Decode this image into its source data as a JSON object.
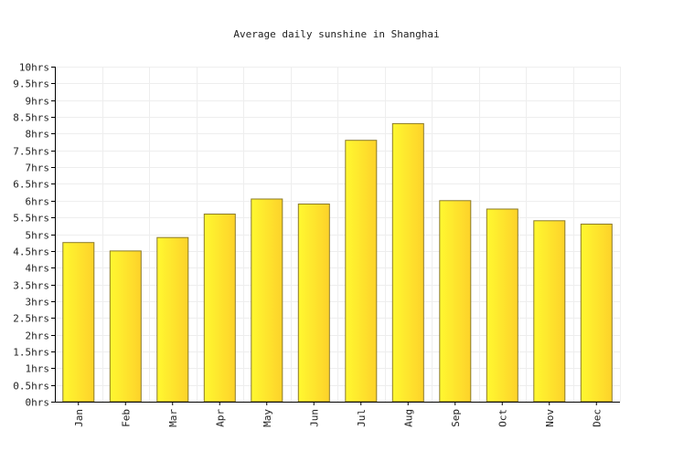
{
  "chart_data": {
    "type": "bar",
    "title": "Average daily sunshine in Shanghai",
    "xlabel": "",
    "ylabel": "",
    "categories": [
      "Jan",
      "Feb",
      "Mar",
      "Apr",
      "May",
      "Jun",
      "Jul",
      "Aug",
      "Sep",
      "Oct",
      "Nov",
      "Dec"
    ],
    "series": [
      {
        "values": [
          4.75,
          4.5,
          4.9,
          5.6,
          6.05,
          5.9,
          7.8,
          8.3,
          6.0,
          5.75,
          5.4,
          5.3
        ]
      }
    ],
    "ylim": [
      0,
      10
    ],
    "yticks": [
      0,
      0.5,
      1,
      1.5,
      2,
      2.5,
      3,
      3.5,
      4,
      4.5,
      5,
      5.5,
      6,
      6.5,
      7,
      7.5,
      8,
      8.5,
      9,
      9.5,
      10
    ],
    "ytick_labels": [
      "0hrs",
      "0.5hrs",
      "1hrs",
      "1.5hrs",
      "2hrs",
      "2.5hrs",
      "3hrs",
      "3.5hrs",
      "4hrs",
      "4.5hrs",
      "5hrs",
      "5.5hrs",
      "6hrs",
      "6.5hrs",
      "7hrs",
      "7.5hrs",
      "8hrs",
      "8.5hrs",
      "9hrs",
      "9.5hrs",
      "10hrs"
    ],
    "grid": true,
    "legend": "none",
    "colors": {
      "bar_light": "#fff830",
      "bar_dark": "#fdd22a",
      "bar_edge": "#8a7a2a",
      "grid": "#eeeeee",
      "axis": "#000000"
    }
  }
}
